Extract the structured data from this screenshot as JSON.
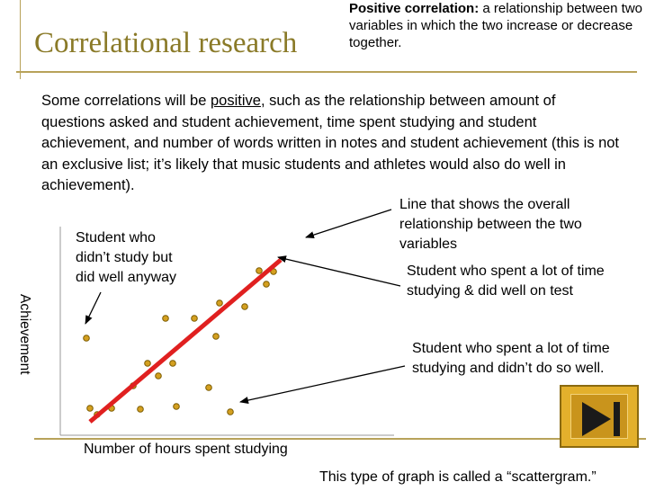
{
  "title": "Correlational research",
  "definition": {
    "term": "Positive correlation:",
    "text": "  a relationship between two variables in which the two increase or decrease together."
  },
  "body": {
    "pre": "Some correlations will be ",
    "underlined": "positive",
    "post": ", such as the relationship between amount of questions asked and student achievement, time spent studying and student achievement,  and number of words written in notes and student achievement (this is not an exclusive list; it’s likely that music students and athletes would also do well in achievement)."
  },
  "annotations": {
    "line": "Line that shows the overall relationship between the two variables",
    "no_study": "Student who didn’t study but did well anyway",
    "study_well": "Student who spent a lot of time studying & did well on test",
    "study_poor": "Student who spent a lot of time studying and didn’t do so well."
  },
  "chart_data": {
    "type": "scatter",
    "xlabel": "Number of hours spent studying",
    "ylabel": "Achievement",
    "points": [
      {
        "x": 2,
        "y": 88
      },
      {
        "x": 3,
        "y": 10
      },
      {
        "x": 5,
        "y": 3
      },
      {
        "x": 9,
        "y": 10
      },
      {
        "x": 15,
        "y": 35
      },
      {
        "x": 17,
        "y": 9
      },
      {
        "x": 19,
        "y": 60
      },
      {
        "x": 22,
        "y": 46
      },
      {
        "x": 24,
        "y": 110
      },
      {
        "x": 26,
        "y": 60
      },
      {
        "x": 27,
        "y": 12
      },
      {
        "x": 32,
        "y": 110
      },
      {
        "x": 36,
        "y": 33
      },
      {
        "x": 38,
        "y": 90
      },
      {
        "x": 39,
        "y": 127
      },
      {
        "x": 42,
        "y": 6
      },
      {
        "x": 46,
        "y": 123
      },
      {
        "x": 50,
        "y": 163
      },
      {
        "x": 52,
        "y": 148
      },
      {
        "x": 54,
        "y": 162
      }
    ],
    "trend_line": {
      "x": [
        3,
        56
      ],
      "y": [
        -5,
        175
      ]
    },
    "colors": {
      "point": "#d4a020",
      "point_edge": "#7a5a00",
      "trend": "#e02020",
      "arrow": "#000000"
    }
  },
  "caption": "This type of graph is called a “scattergram.”",
  "icons": {
    "next": "next-track-icon"
  }
}
